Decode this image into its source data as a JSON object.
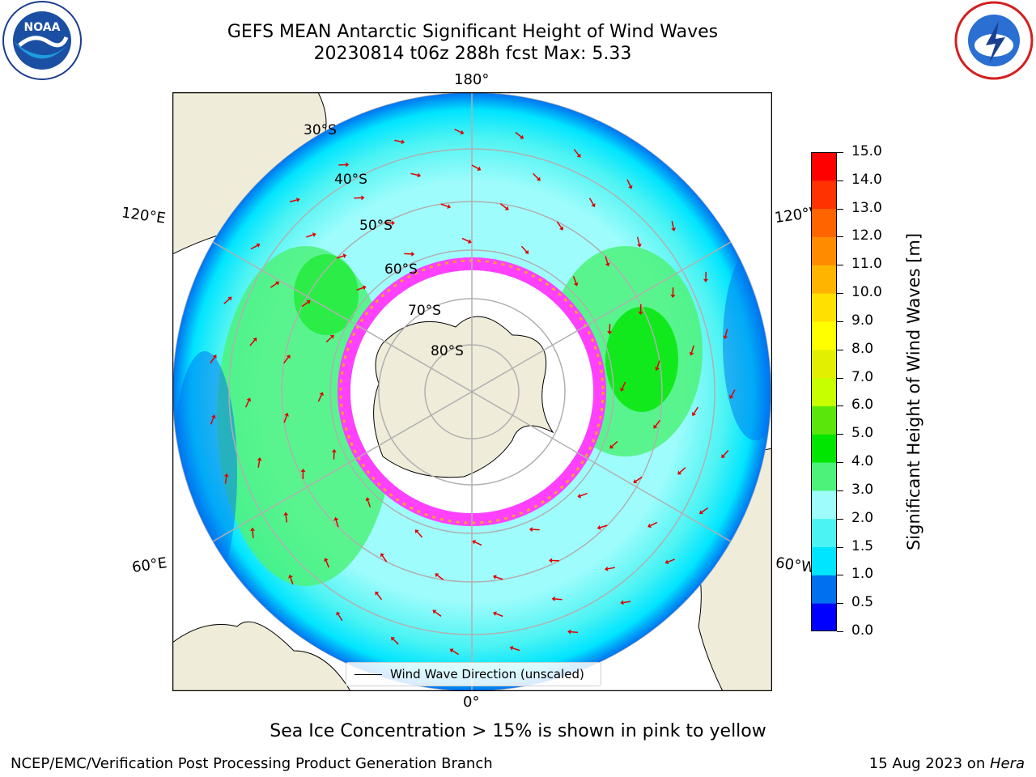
{
  "title": {
    "line1": "GEFS MEAN Antarctic Significant Height of Wind Waves",
    "line2": "20230814 t06z 288h fcst   Max: 5.33"
  },
  "map": {
    "projection": "south-polar-stereographic",
    "longitude_labels": {
      "top": "180°",
      "bottom": "0°",
      "upper_left": "120°E",
      "upper_right": "120°W",
      "lower_left": "60°E",
      "lower_right": "60°W"
    },
    "latitude_labels": [
      "30°S",
      "40°S",
      "50°S",
      "60°S",
      "70°S",
      "80°S"
    ],
    "land_color": "#efecd9",
    "ocean_color_scale_source": "colorbar"
  },
  "legend": {
    "label": "Wind Wave Direction (unscaled)"
  },
  "colorbar": {
    "title": "Significant Height of Wind Waves [m]",
    "ticks": [
      "0.0",
      "0.5",
      "1.0",
      "1.5",
      "2.0",
      "3.0",
      "4.0",
      "5.0",
      "6.0",
      "7.0",
      "8.0",
      "9.0",
      "10.0",
      "11.0",
      "12.0",
      "13.0",
      "14.0",
      "15.0"
    ],
    "colors": [
      "#0000ff",
      "#0070f0",
      "#00e5ff",
      "#4cf3f3",
      "#9ffcfc",
      "#4cf27a",
      "#00e600",
      "#5ae60a",
      "#c7ff00",
      "#e2f000",
      "#ffff00",
      "#ffe000",
      "#ffb400",
      "#ff8c00",
      "#ff6400",
      "#ff3200",
      "#ff0000"
    ]
  },
  "caption": "Sea Ice Concentration > 15% is shown in pink to yellow",
  "footer": {
    "left": "NCEP/EMC/Verification Post Processing Product Generation Branch",
    "right_date": "15 Aug 2023 on ",
    "right_host": "Hera"
  },
  "logos": {
    "left": "NOAA",
    "right": "NATIONAL WEATHER SERVICE"
  }
}
